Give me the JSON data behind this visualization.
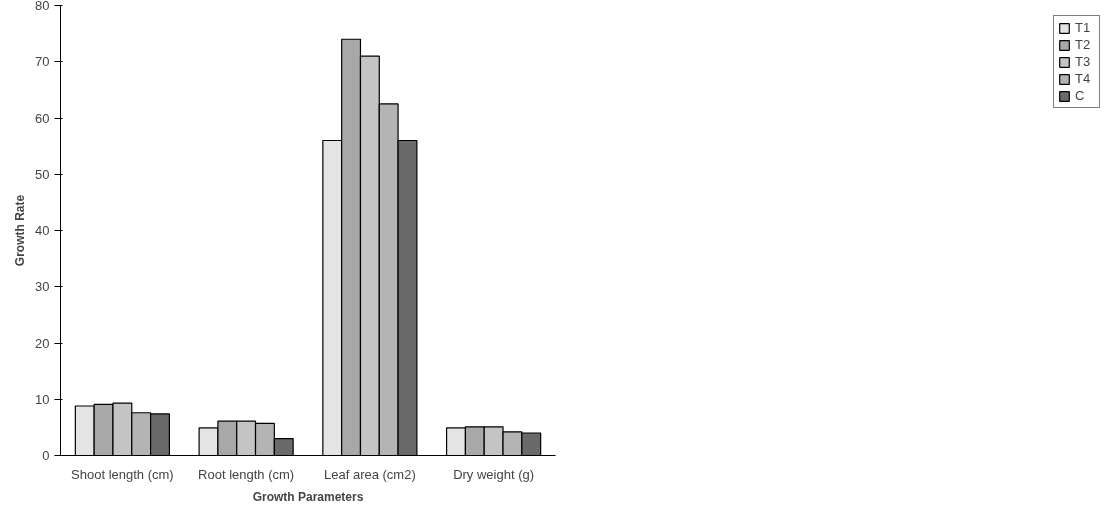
{
  "chart_data": {
    "type": "bar",
    "xlabel": "Growth Parameters",
    "ylabel": "Growth Rate",
    "categories": [
      "Shoot length (cm)",
      "Root length (cm)",
      "Leaf area (cm2)",
      "Dry weight (g)"
    ],
    "series": [
      {
        "name": "T1",
        "color": "#e4e4e4",
        "values": [
          8.8,
          4.9,
          56,
          4.9
        ]
      },
      {
        "name": "T2",
        "color": "#a8a8a8",
        "values": [
          9.1,
          6.1,
          74,
          5.1
        ]
      },
      {
        "name": "T3",
        "color": "#c4c4c4",
        "values": [
          9.3,
          6.1,
          71,
          5.1
        ]
      },
      {
        "name": "T4",
        "color": "#b4b4b4",
        "values": [
          7.6,
          5.7,
          62.5,
          4.2
        ]
      },
      {
        "name": "C",
        "color": "#6a6a6a",
        "values": [
          7.4,
          3.0,
          56,
          4.0
        ]
      }
    ],
    "ylim": [
      0,
      80
    ],
    "yticks": [
      0,
      10,
      20,
      30,
      40,
      50,
      60,
      70,
      80
    ],
    "grid": false,
    "legend": "right"
  }
}
